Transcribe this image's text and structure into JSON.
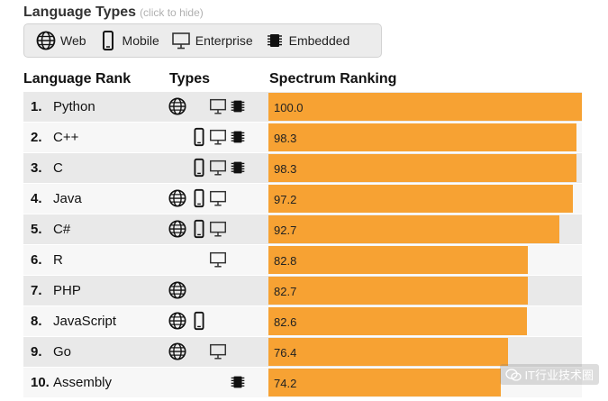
{
  "header": {
    "title": "Language Types",
    "hint": "(click to hide)"
  },
  "filters": [
    {
      "label": "Web",
      "icon": "globe-icon"
    },
    {
      "label": "Mobile",
      "icon": "mobile-phone-icon"
    },
    {
      "label": "Enterprise",
      "icon": "desktop-monitor-icon"
    },
    {
      "label": "Embedded",
      "icon": "chip-icon"
    }
  ],
  "columns": {
    "rank": "Language Rank",
    "types": "Types",
    "spectrum": "Spectrum Ranking"
  },
  "colors": {
    "bar": "#f7a233",
    "row_odd": "#e9e9e9",
    "row_even": "#f7f7f7"
  },
  "chart_data": {
    "type": "bar",
    "orientation": "horizontal",
    "title": "Spectrum Ranking",
    "xlim": [
      0,
      100
    ],
    "categories": [
      "Python",
      "C++",
      "C",
      "Java",
      "C#",
      "R",
      "PHP",
      "JavaScript",
      "Go",
      "Assembly"
    ],
    "values": [
      100.0,
      98.3,
      98.3,
      97.2,
      92.7,
      82.8,
      82.7,
      82.6,
      76.4,
      74.2
    ],
    "value_labels": [
      "100.0",
      "98.3",
      "98.3",
      "97.2",
      "92.7",
      "82.8",
      "82.7",
      "82.6",
      "76.4",
      "74.2"
    ],
    "ranks": [
      "1.",
      "2.",
      "3.",
      "4.",
      "5.",
      "6.",
      "7.",
      "8.",
      "9.",
      "10."
    ],
    "types": [
      [
        "web",
        "enterprise",
        "embedded"
      ],
      [
        "mobile",
        "enterprise",
        "embedded"
      ],
      [
        "mobile",
        "enterprise",
        "embedded"
      ],
      [
        "web",
        "mobile",
        "enterprise"
      ],
      [
        "web",
        "mobile",
        "enterprise"
      ],
      [
        "enterprise"
      ],
      [
        "web"
      ],
      [
        "web",
        "mobile"
      ],
      [
        "web",
        "enterprise"
      ],
      [
        "embedded"
      ]
    ]
  },
  "watermark": "IT行业技术圈"
}
